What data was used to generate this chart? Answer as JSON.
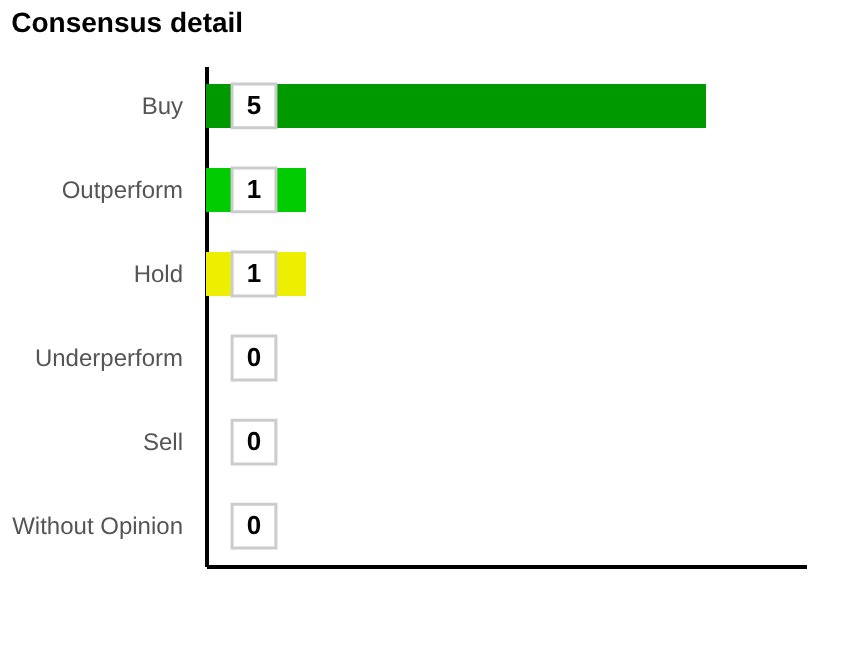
{
  "chart_data": {
    "type": "bar",
    "orientation": "horizontal",
    "title": "Consensus detail",
    "categories": [
      "Buy",
      "Outperform",
      "Hold",
      "Underperform",
      "Sell",
      "Without Opinion"
    ],
    "values": [
      5,
      1,
      1,
      0,
      0,
      0
    ],
    "colors": [
      "#009900",
      "#00cc00",
      "#eeee00",
      "#00cc00",
      "#00cc00",
      "#00cc00"
    ],
    "data_labels": true,
    "tick_labels": "y"
  }
}
